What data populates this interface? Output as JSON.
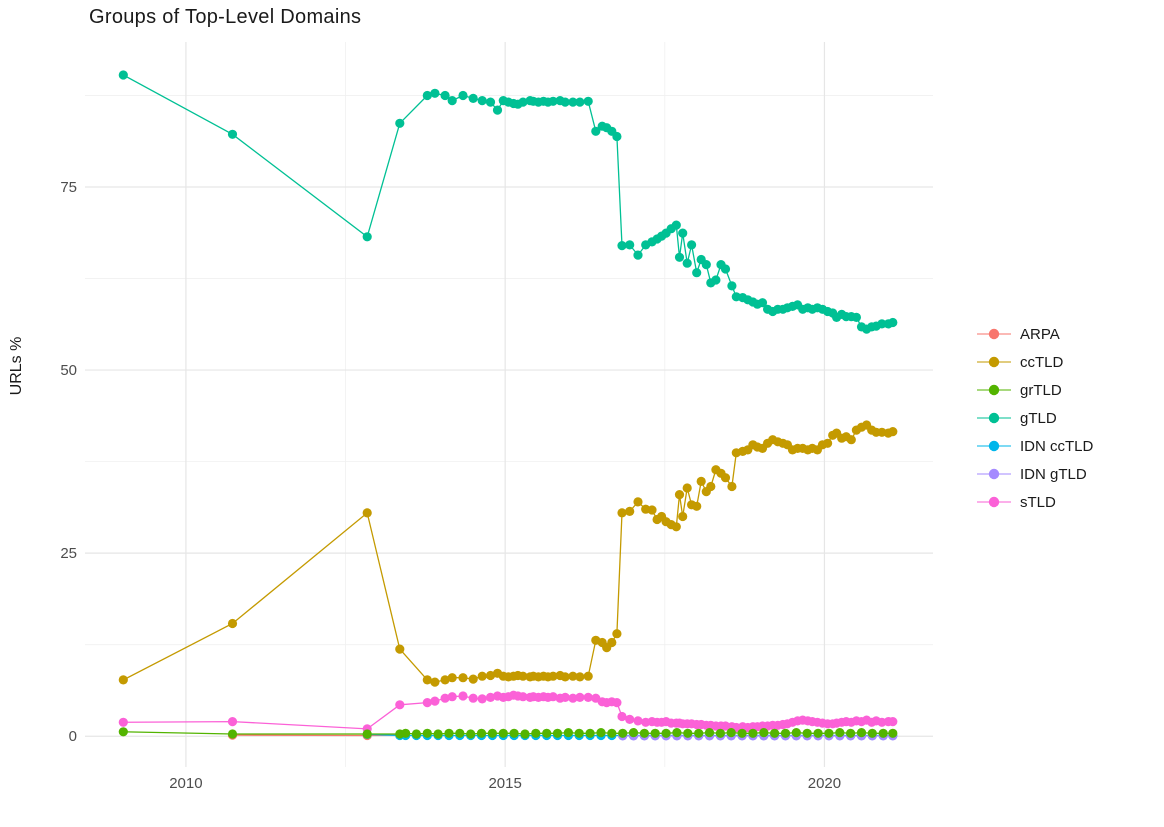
{
  "chart_data": {
    "type": "scatter",
    "title": "Groups of Top-Level Domains",
    "xlabel": "",
    "ylabel": "URLs %",
    "x_domain": [
      2008.42,
      2021.7
    ],
    "y_domain": [
      -4.2,
      94.8
    ],
    "grid": true,
    "legend_position": "right-middle",
    "x_axis": {
      "ticks": [
        {
          "v": 2010,
          "label": "2010"
        },
        {
          "v": 2015,
          "label": "2015"
        },
        {
          "v": 2020,
          "label": "2020"
        }
      ],
      "minor": [
        2012.5,
        2017.5
      ]
    },
    "y_axis": {
      "ticks": [
        {
          "v": 0,
          "label": "0"
        },
        {
          "v": 25,
          "label": "25"
        },
        {
          "v": 50,
          "label": "50"
        },
        {
          "v": 75,
          "label": "75"
        }
      ],
      "minor": [
        12.5,
        37.5,
        62.5,
        87.5
      ]
    },
    "draw_order": [
      "ARPA",
      "IDN ccTLD",
      "IDN gTLD",
      "ccTLD",
      "sTLD",
      "grTLD",
      "gTLD"
    ],
    "legend_order": [
      "ARPA",
      "ccTLD",
      "grTLD",
      "gTLD",
      "IDN ccTLD",
      "IDN gTLD",
      "sTLD"
    ],
    "series": [
      {
        "name": "ARPA",
        "color": "#F8766D",
        "x": [
          2010.73,
          2012.84,
          2013.35
        ],
        "y": [
          0.15,
          0.1,
          0.15
        ]
      },
      {
        "name": "ccTLD",
        "color": "#C49A00",
        "x": [
          2009.02,
          2010.73,
          2012.84,
          2013.35,
          2013.78,
          2013.9,
          2014.06,
          2014.17,
          2014.34,
          2014.5,
          2014.64,
          2014.77,
          2014.88,
          2014.97,
          2015.05,
          2015.13,
          2015.2,
          2015.28,
          2015.39,
          2015.44,
          2015.52,
          2015.6,
          2015.67,
          2015.75,
          2015.86,
          2015.94,
          2016.06,
          2016.17,
          2016.3,
          2016.42,
          2016.52,
          2016.59,
          2016.67,
          2016.75,
          2016.83,
          2016.95,
          2017.08,
          2017.2,
          2017.3,
          2017.38,
          2017.45,
          2017.52,
          2017.6,
          2017.68,
          2017.73,
          2017.78,
          2017.85,
          2017.92,
          2018.0,
          2018.07,
          2018.15,
          2018.22,
          2018.3,
          2018.38,
          2018.45,
          2018.55,
          2018.62,
          2018.72,
          2018.8,
          2018.88,
          2018.95,
          2019.03,
          2019.11,
          2019.19,
          2019.27,
          2019.35,
          2019.42,
          2019.5,
          2019.58,
          2019.66,
          2019.74,
          2019.81,
          2019.89,
          2019.97,
          2020.05,
          2020.13,
          2020.19,
          2020.27,
          2020.34,
          2020.42,
          2020.5,
          2020.58,
          2020.66,
          2020.74,
          2020.81,
          2020.9,
          2021.0,
          2021.07
        ],
        "y": [
          7.7,
          15.4,
          30.5,
          11.9,
          7.7,
          7.4,
          7.7,
          8.0,
          8.0,
          7.8,
          8.2,
          8.3,
          8.6,
          8.2,
          8.1,
          8.2,
          8.3,
          8.2,
          8.1,
          8.2,
          8.1,
          8.2,
          8.1,
          8.2,
          8.3,
          8.1,
          8.2,
          8.1,
          8.2,
          13.1,
          12.8,
          12.1,
          12.8,
          14.0,
          30.5,
          30.7,
          32.0,
          31.0,
          30.9,
          29.6,
          30.0,
          29.3,
          28.9,
          28.6,
          33.0,
          30.0,
          33.9,
          31.6,
          31.4,
          34.8,
          33.4,
          34.1,
          36.4,
          35.9,
          35.3,
          34.1,
          38.7,
          38.9,
          39.1,
          39.8,
          39.5,
          39.3,
          40.0,
          40.5,
          40.2,
          40.0,
          39.8,
          39.1,
          39.3,
          39.3,
          39.1,
          39.3,
          39.1,
          39.8,
          40.0,
          41.1,
          41.4,
          40.7,
          40.9,
          40.5,
          41.8,
          42.2,
          42.5,
          41.8,
          41.5,
          41.5,
          41.4,
          41.6
        ]
      },
      {
        "name": "grTLD",
        "color": "#53B400",
        "x": [
          2009.02,
          2010.73,
          2012.84,
          2013.35,
          2013.44,
          2013.61,
          2013.78,
          2013.95,
          2014.12,
          2014.29,
          2014.46,
          2014.63,
          2014.8,
          2014.97,
          2015.14,
          2015.31,
          2015.48,
          2015.65,
          2015.82,
          2015.99,
          2016.16,
          2016.33,
          2016.5,
          2016.67,
          2016.84,
          2017.01,
          2017.18,
          2017.35,
          2017.52,
          2017.69,
          2017.86,
          2018.03,
          2018.2,
          2018.37,
          2018.54,
          2018.71,
          2018.88,
          2019.05,
          2019.22,
          2019.39,
          2019.56,
          2019.73,
          2019.9,
          2020.07,
          2020.24,
          2020.41,
          2020.58,
          2020.75,
          2020.92,
          2021.07
        ],
        "y": [
          0.6,
          0.3,
          0.3,
          0.3,
          0.4,
          0.3,
          0.4,
          0.3,
          0.4,
          0.4,
          0.3,
          0.4,
          0.4,
          0.4,
          0.4,
          0.3,
          0.4,
          0.4,
          0.4,
          0.5,
          0.4,
          0.4,
          0.5,
          0.4,
          0.4,
          0.5,
          0.4,
          0.4,
          0.4,
          0.5,
          0.4,
          0.4,
          0.5,
          0.4,
          0.5,
          0.4,
          0.4,
          0.5,
          0.4,
          0.4,
          0.5,
          0.4,
          0.4,
          0.4,
          0.5,
          0.4,
          0.5,
          0.4,
          0.4,
          0.4
        ]
      },
      {
        "name": "gTLD",
        "color": "#00C094",
        "x": [
          2009.02,
          2010.73,
          2012.84,
          2013.35,
          2013.78,
          2013.9,
          2014.06,
          2014.17,
          2014.34,
          2014.5,
          2014.64,
          2014.77,
          2014.88,
          2014.97,
          2015.05,
          2015.13,
          2015.2,
          2015.28,
          2015.39,
          2015.44,
          2015.52,
          2015.6,
          2015.67,
          2015.75,
          2015.86,
          2015.94,
          2016.06,
          2016.17,
          2016.3,
          2016.42,
          2016.52,
          2016.59,
          2016.67,
          2016.75,
          2016.83,
          2016.95,
          2017.08,
          2017.2,
          2017.3,
          2017.38,
          2017.45,
          2017.52,
          2017.6,
          2017.68,
          2017.73,
          2017.78,
          2017.85,
          2017.92,
          2018.0,
          2018.07,
          2018.15,
          2018.22,
          2018.3,
          2018.38,
          2018.45,
          2018.55,
          2018.62,
          2018.72,
          2018.8,
          2018.88,
          2018.95,
          2019.03,
          2019.11,
          2019.19,
          2019.27,
          2019.35,
          2019.42,
          2019.5,
          2019.58,
          2019.66,
          2019.74,
          2019.81,
          2019.89,
          2019.97,
          2020.05,
          2020.13,
          2020.19,
          2020.27,
          2020.34,
          2020.42,
          2020.5,
          2020.58,
          2020.66,
          2020.74,
          2020.81,
          2020.9,
          2021.0,
          2021.07
        ],
        "y": [
          90.3,
          82.2,
          68.2,
          83.7,
          87.5,
          87.8,
          87.5,
          86.8,
          87.5,
          87.1,
          86.8,
          86.6,
          85.5,
          86.8,
          86.6,
          86.4,
          86.3,
          86.6,
          86.8,
          86.7,
          86.6,
          86.7,
          86.6,
          86.7,
          86.8,
          86.6,
          86.6,
          86.6,
          86.7,
          82.6,
          83.3,
          83.1,
          82.6,
          81.9,
          67.0,
          67.1,
          65.7,
          67.1,
          67.5,
          67.9,
          68.3,
          68.7,
          69.3,
          69.8,
          65.4,
          68.7,
          64.6,
          67.1,
          63.3,
          65.1,
          64.4,
          61.9,
          62.3,
          64.4,
          63.8,
          61.5,
          60.0,
          59.9,
          59.6,
          59.3,
          59.0,
          59.2,
          58.3,
          58.0,
          58.3,
          58.3,
          58.5,
          58.7,
          58.9,
          58.3,
          58.5,
          58.3,
          58.5,
          58.3,
          58.0,
          57.8,
          57.2,
          57.6,
          57.3,
          57.3,
          57.2,
          55.9,
          55.6,
          55.9,
          56.0,
          56.3,
          56.3,
          56.5
        ]
      },
      {
        "name": "IDN ccTLD",
        "color": "#00B6EB",
        "x": [
          2012.84,
          2013.35,
          2013.44,
          2013.61,
          2013.78,
          2013.95,
          2014.12,
          2014.29,
          2014.46,
          2014.63,
          2014.8,
          2014.97,
          2015.14,
          2015.31,
          2015.48,
          2015.65,
          2015.82,
          2015.99,
          2016.16,
          2016.33,
          2016.5,
          2016.67,
          2016.84,
          2017.01,
          2017.18,
          2017.35,
          2017.52,
          2017.69,
          2017.86,
          2018.03,
          2018.2,
          2018.37,
          2018.54,
          2018.71,
          2018.88,
          2019.05,
          2019.22,
          2019.39,
          2019.56,
          2019.73,
          2019.9,
          2020.07,
          2020.24,
          2020.41,
          2020.58,
          2020.75,
          2020.92,
          2021.07
        ],
        "y": [
          0.25,
          0.1,
          0.1,
          0.1,
          0.1,
          0.1,
          0.1,
          0.1,
          0.1,
          0.1,
          0.1,
          0.1,
          0.1,
          0.1,
          0.1,
          0.1,
          0.1,
          0.1,
          0.1,
          0.1,
          0.1,
          0.1,
          0.1,
          0.1,
          0.1,
          0.1,
          0.1,
          0.1,
          0.1,
          0.1,
          0.1,
          0.1,
          0.1,
          0.1,
          0.1,
          0.1,
          0.1,
          0.1,
          0.1,
          0.1,
          0.1,
          0.1,
          0.1,
          0.1,
          0.1,
          0.1,
          0.1,
          0.1
        ]
      },
      {
        "name": "IDN gTLD",
        "color": "#A58AFF",
        "x": [
          2016.84,
          2017.01,
          2017.18,
          2017.35,
          2017.52,
          2017.69,
          2017.86,
          2018.03,
          2018.2,
          2018.37,
          2018.54,
          2018.71,
          2018.88,
          2019.05,
          2019.22,
          2019.39,
          2019.56,
          2019.73,
          2019.9,
          2020.07,
          2020.24,
          2020.41,
          2020.58,
          2020.75,
          2020.92,
          2021.07
        ],
        "y": [
          0.05,
          0.05,
          0.05,
          0.05,
          0.05,
          0.05,
          0.05,
          0.05,
          0.05,
          0.05,
          0.05,
          0.05,
          0.05,
          0.05,
          0.05,
          0.05,
          0.05,
          0.05,
          0.05,
          0.05,
          0.05,
          0.05,
          0.05,
          0.05,
          0.05,
          0.05
        ]
      },
      {
        "name": "sTLD",
        "color": "#FB61D7",
        "x": [
          2009.02,
          2010.73,
          2012.84,
          2013.35,
          2013.78,
          2013.9,
          2014.06,
          2014.17,
          2014.34,
          2014.5,
          2014.64,
          2014.77,
          2014.88,
          2014.97,
          2015.05,
          2015.13,
          2015.2,
          2015.28,
          2015.39,
          2015.44,
          2015.52,
          2015.6,
          2015.67,
          2015.75,
          2015.86,
          2015.94,
          2016.06,
          2016.17,
          2016.3,
          2016.42,
          2016.52,
          2016.59,
          2016.67,
          2016.75,
          2016.83,
          2016.95,
          2017.08,
          2017.2,
          2017.3,
          2017.38,
          2017.45,
          2017.52,
          2017.6,
          2017.68,
          2017.73,
          2017.78,
          2017.85,
          2017.92,
          2018.0,
          2018.07,
          2018.15,
          2018.22,
          2018.3,
          2018.38,
          2018.45,
          2018.55,
          2018.62,
          2018.72,
          2018.8,
          2018.88,
          2018.95,
          2019.03,
          2019.11,
          2019.19,
          2019.27,
          2019.35,
          2019.42,
          2019.5,
          2019.58,
          2019.66,
          2019.74,
          2019.81,
          2019.89,
          2019.97,
          2020.05,
          2020.13,
          2020.19,
          2020.27,
          2020.34,
          2020.42,
          2020.5,
          2020.58,
          2020.66,
          2020.74,
          2020.81,
          2020.9,
          2021.0,
          2021.07
        ],
        "y": [
          1.9,
          2.0,
          1.0,
          4.3,
          4.6,
          4.8,
          5.2,
          5.4,
          5.5,
          5.2,
          5.1,
          5.3,
          5.5,
          5.3,
          5.4,
          5.6,
          5.5,
          5.4,
          5.3,
          5.4,
          5.3,
          5.4,
          5.3,
          5.4,
          5.2,
          5.3,
          5.2,
          5.3,
          5.3,
          5.2,
          4.7,
          4.6,
          4.7,
          4.6,
          2.7,
          2.3,
          2.1,
          1.9,
          2.0,
          1.9,
          1.9,
          2.0,
          1.8,
          1.8,
          1.8,
          1.7,
          1.7,
          1.7,
          1.6,
          1.6,
          1.5,
          1.5,
          1.4,
          1.4,
          1.4,
          1.3,
          1.2,
          1.3,
          1.2,
          1.3,
          1.3,
          1.4,
          1.4,
          1.5,
          1.5,
          1.6,
          1.7,
          1.9,
          2.1,
          2.2,
          2.1,
          2.0,
          1.9,
          1.8,
          1.7,
          1.7,
          1.8,
          1.9,
          2.0,
          1.9,
          2.1,
          2.0,
          2.2,
          1.9,
          2.1,
          1.9,
          2.0,
          2.0
        ]
      }
    ],
    "style": {
      "grid_major_color": "#e6e6e6",
      "grid_minor_color": "#f0f0f0",
      "tick_label_color": "#4d4d4d",
      "point_radius": 4.6,
      "line_width": 1.3
    }
  }
}
